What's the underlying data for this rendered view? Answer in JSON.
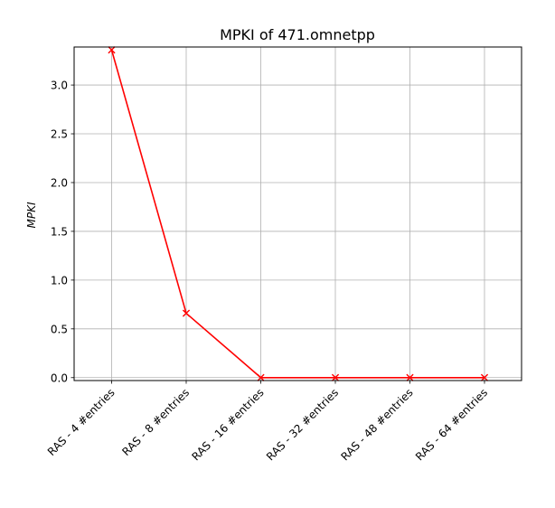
{
  "chart_data": {
    "type": "line",
    "title": "MPKI of 471.omnetpp",
    "xlabel": "",
    "ylabel": "MPKI",
    "categories": [
      "RAS - 4 #entries",
      "RAS - 8 #entries",
      "RAS - 16 #entries",
      "RAS - 32 #entries",
      "RAS - 48 #entries",
      "RAS - 64 #entries"
    ],
    "series": [
      {
        "values": [
          3.36,
          0.66,
          0.0,
          0.0,
          0.0,
          0.0
        ],
        "color": "#ff0000",
        "marker": "x"
      }
    ],
    "ylim": [
      -0.03,
      3.39
    ],
    "yticks": [
      0.0,
      0.5,
      1.0,
      1.5,
      2.0,
      2.5,
      3.0
    ],
    "ytick_labels": [
      "0.0",
      "0.5",
      "1.0",
      "1.5",
      "2.0",
      "2.5",
      "3.0"
    ],
    "grid": true,
    "legend": "none",
    "xtick_rotation": 45
  }
}
